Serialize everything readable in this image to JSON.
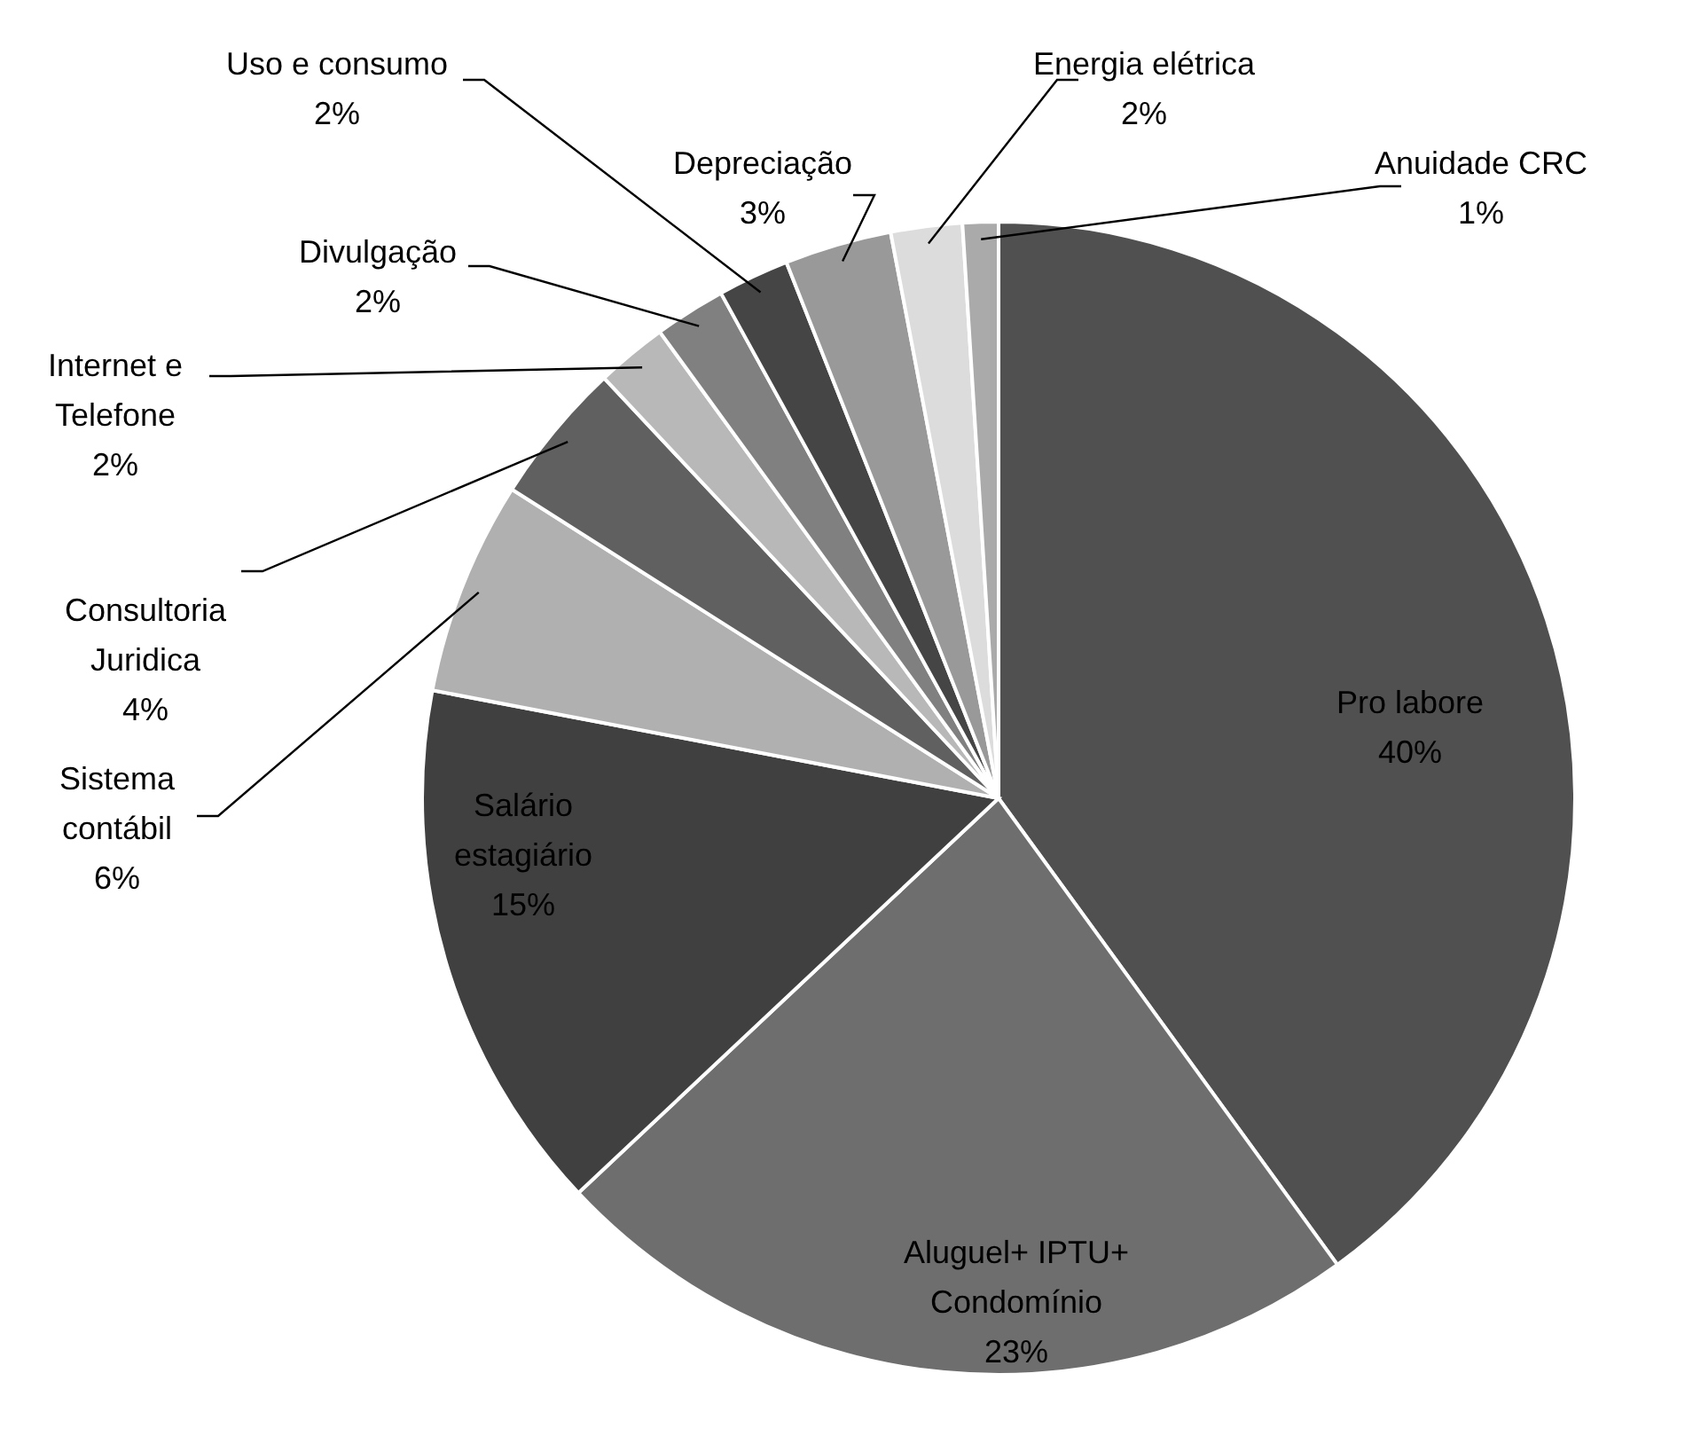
{
  "chart_data": {
    "type": "pie",
    "categories": [
      "Pro labore",
      "Aluguel+ IPTU+ Condomínio",
      "Salário estagiário",
      "Sistema contábil",
      "Consultoria Juridica",
      "Internet e Telefone",
      "Divulgação",
      "Uso e consumo",
      "Depreciação",
      "Energia elétrica",
      "Anuidade CRC"
    ],
    "values": [
      40,
      23,
      15,
      6,
      4,
      2,
      2,
      2,
      3,
      2,
      1
    ],
    "value_labels": [
      "40%",
      "23%",
      "15%",
      "6%",
      "4%",
      "2%",
      "2%",
      "2%",
      "3%",
      "2%",
      "1%"
    ],
    "colors": [
      "#505050",
      "#6e6e6e",
      "#404040",
      "#b0b0b0",
      "#606060",
      "#b8b8b8",
      "#808080",
      "#454545",
      "#999999",
      "#dcdcdc",
      "#aaaaaa"
    ]
  }
}
